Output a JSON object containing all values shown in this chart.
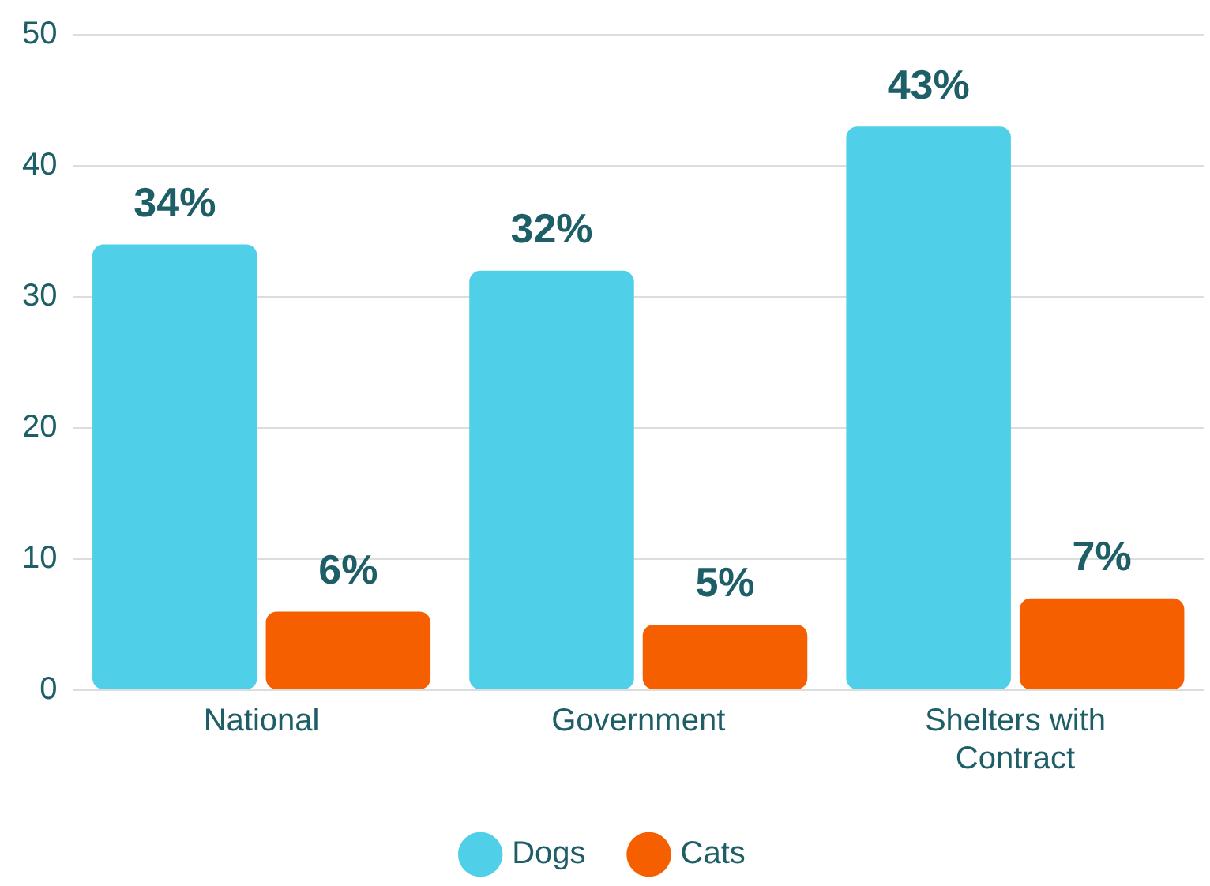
{
  "chart_data": {
    "type": "bar",
    "categories": [
      "National",
      "Government",
      "Shelters with Contract"
    ],
    "series": [
      {
        "name": "Dogs",
        "color": "#4fd0e8",
        "values": [
          34,
          32,
          43
        ],
        "value_labels": [
          "34%",
          "32%",
          "43%"
        ]
      },
      {
        "name": "Cats",
        "color": "#f55f00",
        "values": [
          6,
          5,
          7
        ],
        "value_labels": [
          "6%",
          "5%",
          "7%"
        ]
      }
    ],
    "ylim": [
      0,
      50
    ],
    "yticks": [
      0,
      10,
      20,
      30,
      40,
      50
    ],
    "grid": "y",
    "legend": "bottom"
  }
}
